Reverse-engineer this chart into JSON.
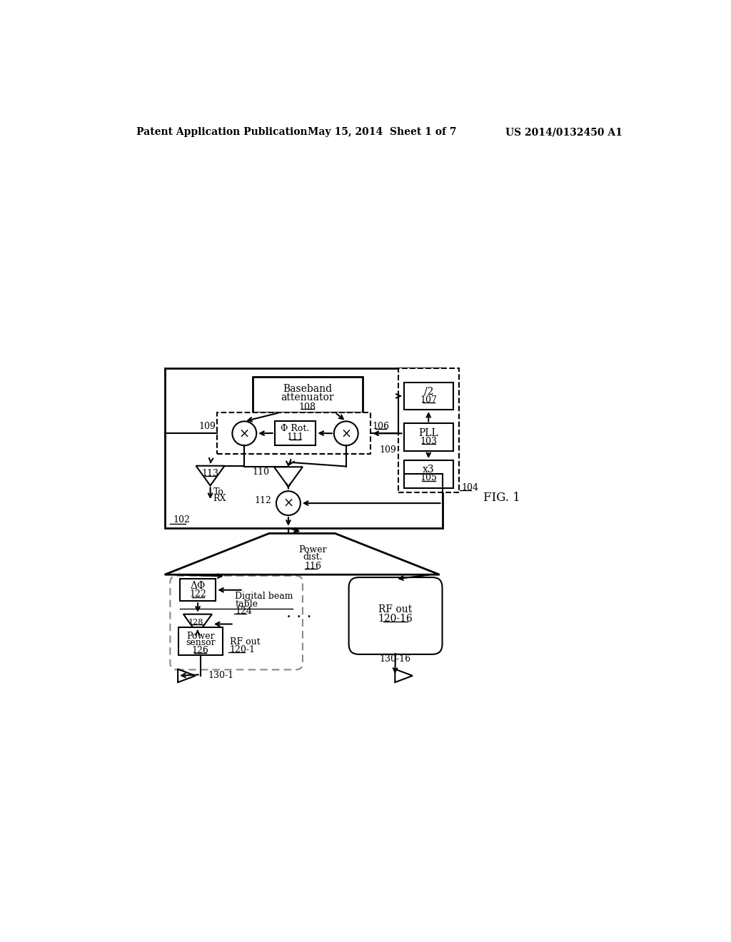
{
  "bg_color": "#ffffff",
  "header_left": "Patent Application Publication",
  "header_mid": "May 15, 2014  Sheet 1 of 7",
  "header_right": "US 2014/0132450 A1",
  "fig_label": "FIG. 1"
}
